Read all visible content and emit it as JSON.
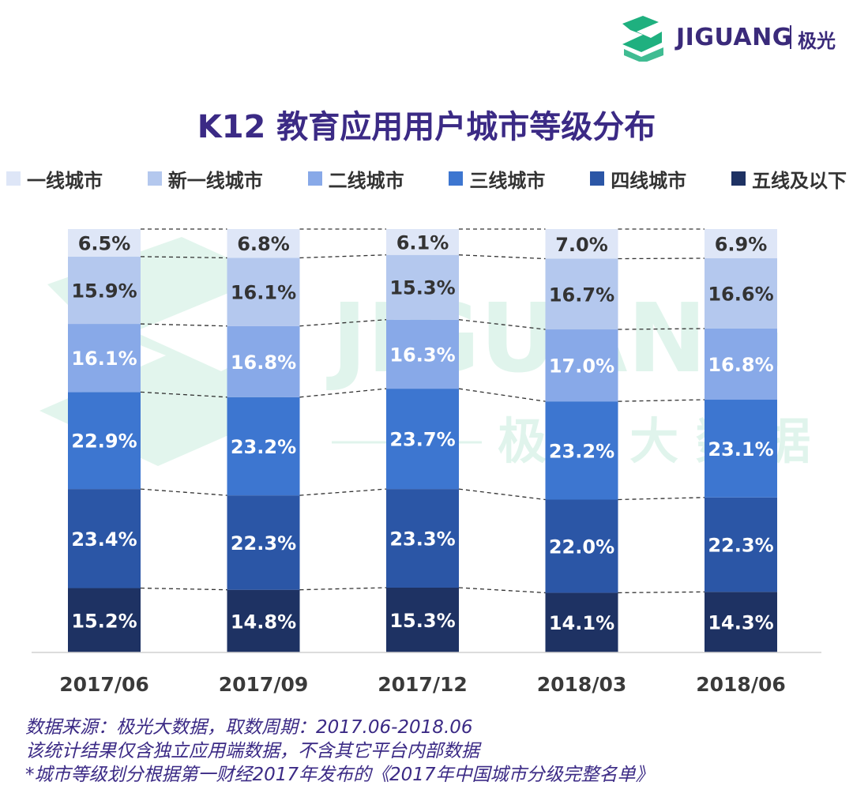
{
  "brand": {
    "name": "JIGUANG",
    "name_cn": "极光",
    "watermark_text": "JIGUANG",
    "watermark_cn": "极 光 大 数 据",
    "colors": {
      "logo_green": "#1fb07f",
      "logo_purple": "#3a2a7a",
      "watermark": "#d6f1e6"
    }
  },
  "chart_data": {
    "type": "bar",
    "stacked": true,
    "normalized": true,
    "title": "K12 教育应用用户城市等级分布",
    "xlabel": "",
    "ylabel": "",
    "ylim": [
      0,
      100
    ],
    "categories": [
      "2017/06",
      "2017/09",
      "2017/12",
      "2018/03",
      "2018/06"
    ],
    "series": [
      {
        "name": "五线及以下",
        "color": "#1e3263",
        "label_color": "#ffffff",
        "values": [
          15.2,
          14.8,
          15.3,
          14.1,
          14.3
        ]
      },
      {
        "name": "四线城市",
        "color": "#2b56a6",
        "label_color": "#ffffff",
        "values": [
          23.4,
          22.3,
          23.3,
          22.0,
          22.3
        ]
      },
      {
        "name": "三线城市",
        "color": "#3d76d0",
        "label_color": "#ffffff",
        "values": [
          22.9,
          23.2,
          23.7,
          23.2,
          23.1
        ]
      },
      {
        "name": "二线城市",
        "color": "#88a9e8",
        "label_color": "#ffffff",
        "values": [
          16.1,
          16.8,
          16.3,
          17.0,
          16.8
        ]
      },
      {
        "name": "新一线城市",
        "color": "#b4c8ee",
        "label_color": "#333333",
        "values": [
          15.9,
          16.1,
          15.3,
          16.7,
          16.6
        ]
      },
      {
        "name": "一线城市",
        "color": "#dee6f7",
        "label_color": "#333333",
        "values": [
          6.5,
          6.8,
          6.1,
          7.0,
          6.9
        ]
      }
    ],
    "legend": [
      "一线城市",
      "新一线城市",
      "二线城市",
      "三线城市",
      "四线城市",
      "五线及以下"
    ],
    "legend_position": "top",
    "value_suffix": "%",
    "connector_lines": "dashed"
  },
  "footnotes": {
    "line1": "数据来源：极光大数据，取数周期：2017.06-2018.06",
    "line2": "该统计结果仅含独立应用端数据，不含其它平台内部数据",
    "line3": "*城市等级划分根据第一财经2017年发布的《2017年中国城市分级完整名单》"
  }
}
